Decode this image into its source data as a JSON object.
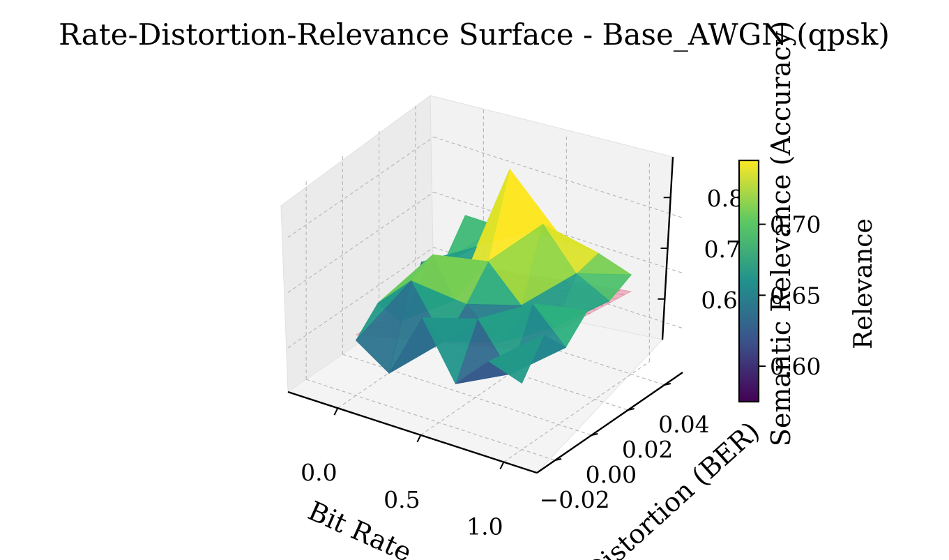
{
  "chart_data": {
    "type": "surface3d",
    "title": "Rate-Distortion-Relevance Surface - Base_AWGN (qpsk)",
    "xlabel": "Bit Rate",
    "ylabel": "Distortion (BER)",
    "zlabel": "Semantic Relevance (Accuracy)",
    "x_ticks": [
      "0.0",
      "0.5",
      "1.0"
    ],
    "y_ticks": [
      "−0.02",
      "0.00",
      "0.02",
      "0.04"
    ],
    "z_ticks": [
      "0.6",
      "0.7",
      "0.8"
    ],
    "xlim": [
      -0.3,
      1.2
    ],
    "ylim": [
      -0.03,
      0.05
    ],
    "zlim": [
      0.52,
      0.88
    ],
    "grid": true,
    "colorbar": {
      "label": "Relevance",
      "colormap": "viridis",
      "ticks": [
        "0.60",
        "0.65",
        "0.70"
      ],
      "range": [
        0.575,
        0.745
      ]
    },
    "series": [
      {
        "kind": "empirical-surface",
        "colormap": "viridis",
        "x": [
          0.0,
          0.2,
          0.4,
          0.6,
          0.8,
          1.0
        ],
        "y": [
          -0.02,
          -0.008,
          0.004,
          0.016,
          0.028,
          0.04
        ],
        "z": [
          [
            0.62,
            0.58,
            0.7,
            0.6,
            0.66,
            0.64
          ],
          [
            0.66,
            0.72,
            0.63,
            0.69,
            0.61,
            0.7
          ],
          [
            0.6,
            0.74,
            0.67,
            0.62,
            0.71,
            0.65
          ],
          [
            0.68,
            0.63,
            0.72,
            0.66,
            0.64,
            0.69
          ],
          [
            0.65,
            0.7,
            0.86,
            0.78,
            0.71,
            0.68
          ],
          [
            0.71,
            0.71,
            0.72,
            0.72,
            0.72,
            0.7
          ]
        ]
      },
      {
        "kind": "reference-plane",
        "color": "#e8829a",
        "x_range": [
          0.0,
          1.0
        ],
        "y_range": [
          -0.02,
          0.04
        ],
        "z_at_corners": [
          0.63,
          0.7,
          0.62,
          0.67
        ]
      }
    ]
  }
}
